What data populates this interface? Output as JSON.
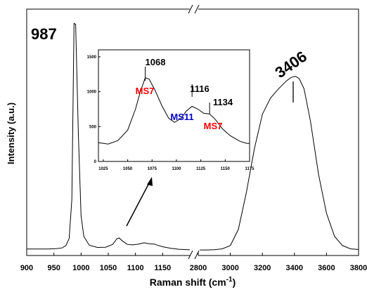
{
  "chart_data": [
    {
      "type": "line",
      "name": "main",
      "xlabel": "Raman shift (cm",
      "xlabel_sup": "-1",
      "xlabel_close": ")",
      "ylabel": "Intensity (a.u.)",
      "axis_break": true,
      "segments": [
        {
          "xlim": [
            900,
            1200
          ],
          "ticks": [
            900,
            950,
            1000,
            1050,
            1100,
            1150
          ],
          "tick_labels": [
            "900",
            "950",
            "1000",
            "1050",
            "1100",
            "1150"
          ],
          "points": [
            [
              900,
              5
            ],
            [
              920,
              5
            ],
            [
              940,
              5
            ],
            [
              955,
              7
            ],
            [
              965,
              10
            ],
            [
              972,
              20
            ],
            [
              978,
              50
            ],
            [
              983,
              220
            ],
            [
              987,
              985
            ],
            [
              990,
              980
            ],
            [
              995,
              500
            ],
            [
              1000,
              150
            ],
            [
              1005,
              60
            ],
            [
              1015,
              22
            ],
            [
              1030,
              12
            ],
            [
              1045,
              13
            ],
            [
              1058,
              25
            ],
            [
              1066,
              50
            ],
            [
              1070,
              53
            ],
            [
              1076,
              40
            ],
            [
              1085,
              25
            ],
            [
              1095,
              23
            ],
            [
              1105,
              26
            ],
            [
              1112,
              30
            ],
            [
              1116,
              32
            ],
            [
              1122,
              29
            ],
            [
              1130,
              27
            ],
            [
              1134,
              27
            ],
            [
              1140,
              22
            ],
            [
              1150,
              15
            ],
            [
              1165,
              8
            ],
            [
              1180,
              4
            ],
            [
              1195,
              2
            ],
            [
              1200,
              2
            ]
          ]
        },
        {
          "xlim": [
            2800,
            3800
          ],
          "ticks": [
            2800,
            3000,
            3200,
            3400,
            3600,
            3800
          ],
          "tick_labels": [
            "2800",
            "3000",
            "3200",
            "3400",
            "3600",
            "3800"
          ],
          "points": [
            [
              2810,
              1
            ],
            [
              2850,
              1
            ],
            [
              2900,
              2
            ],
            [
              2950,
              6
            ],
            [
              3000,
              20
            ],
            [
              3050,
              90
            ],
            [
              3100,
              250
            ],
            [
              3150,
              440
            ],
            [
              3200,
              590
            ],
            [
              3250,
              660
            ],
            [
              3300,
              700
            ],
            [
              3350,
              735
            ],
            [
              3380,
              750
            ],
            [
              3406,
              755
            ],
            [
              3430,
              745
            ],
            [
              3460,
              700
            ],
            [
              3500,
              560
            ],
            [
              3550,
              330
            ],
            [
              3600,
              160
            ],
            [
              3650,
              60
            ],
            [
              3700,
              20
            ],
            [
              3750,
              6
            ],
            [
              3800,
              3
            ]
          ]
        }
      ],
      "ylim": [
        -20,
        1010
      ],
      "annotations": [
        {
          "text": "987",
          "color": "#000000"
        },
        {
          "text": "3406",
          "color": "#000000"
        }
      ]
    },
    {
      "type": "line",
      "name": "inset",
      "xlim": [
        1020,
        1175
      ],
      "ylim": [
        0,
        1600
      ],
      "xticks": [
        1025,
        1050,
        1075,
        1100,
        1125,
        1150,
        1175
      ],
      "xtick_labels": [
        "1025",
        "1050",
        "1075",
        "1100",
        "1125",
        "1150",
        "1175"
      ],
      "yticks": [
        0,
        500,
        1000,
        1500
      ],
      "ytick_labels": [
        "0",
        "500",
        "1000",
        "1500"
      ],
      "points": [
        [
          1020,
          270
        ],
        [
          1030,
          250
        ],
        [
          1040,
          300
        ],
        [
          1050,
          450
        ],
        [
          1058,
          750
        ],
        [
          1063,
          1000
        ],
        [
          1068,
          1200
        ],
        [
          1072,
          1180
        ],
        [
          1078,
          1020
        ],
        [
          1085,
          800
        ],
        [
          1092,
          620
        ],
        [
          1098,
          560
        ],
        [
          1105,
          620
        ],
        [
          1110,
          720
        ],
        [
          1116,
          790
        ],
        [
          1122,
          750
        ],
        [
          1128,
          690
        ],
        [
          1134,
          680
        ],
        [
          1140,
          600
        ],
        [
          1147,
          470
        ],
        [
          1155,
          370
        ],
        [
          1165,
          290
        ],
        [
          1172,
          260
        ],
        [
          1175,
          260
        ]
      ],
      "peaks": [
        {
          "x": 1068,
          "label": "1068",
          "assign": "MS7",
          "assign_color": "#ff0000"
        },
        {
          "x": 1116,
          "label": "1116",
          "assign": "MS11",
          "assign_color": "#0000cc"
        },
        {
          "x": 1134,
          "label": "1134",
          "assign": "MS7",
          "assign_color": "#ff0000"
        }
      ]
    }
  ]
}
